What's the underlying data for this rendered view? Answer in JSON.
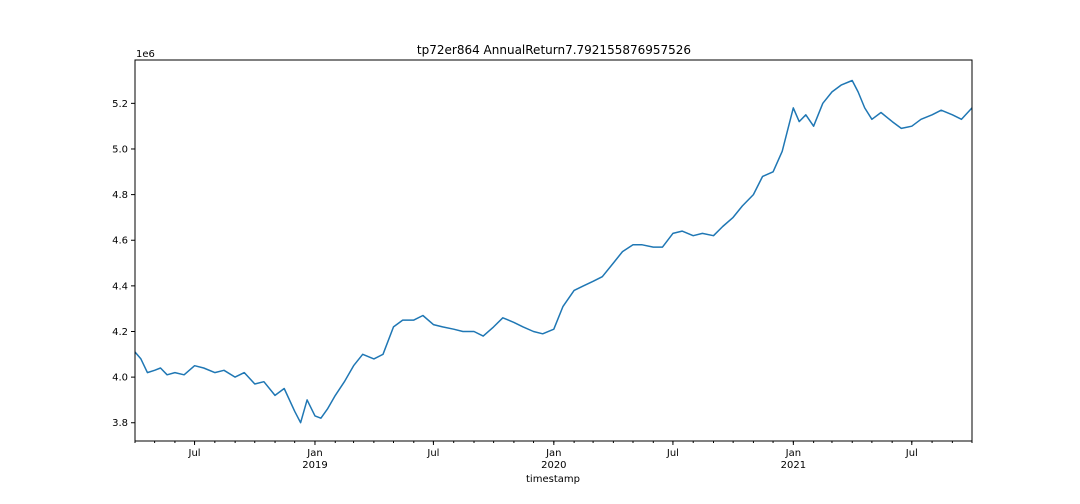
{
  "chart_data": {
    "type": "line",
    "title": "tp72er864 AnnualReturn7.792155876957526",
    "xlabel": "timestamp",
    "ylabel": "",
    "y_offset_label": "1e6",
    "y_scale": 1000000,
    "ylim": [
      3.72,
      5.39
    ],
    "xlim": [
      "2018-04-01",
      "2021-10-01"
    ],
    "yticks": [
      3.8,
      4.0,
      4.2,
      4.4,
      4.6,
      4.8,
      5.0,
      5.2
    ],
    "ytick_labels": [
      "3.8",
      "4.0",
      "4.2",
      "4.4",
      "4.6",
      "4.8",
      "5.0",
      "5.2"
    ],
    "xticks_major": [
      {
        "date": "2018-07-01",
        "label": "Jul",
        "sublabel": ""
      },
      {
        "date": "2019-01-01",
        "label": "Jan",
        "sublabel": "2019"
      },
      {
        "date": "2019-07-01",
        "label": "Jul",
        "sublabel": ""
      },
      {
        "date": "2020-01-01",
        "label": "Jan",
        "sublabel": "2020"
      },
      {
        "date": "2020-07-01",
        "label": "Jul",
        "sublabel": ""
      },
      {
        "date": "2021-01-01",
        "label": "Jan",
        "sublabel": "2021"
      },
      {
        "date": "2021-07-01",
        "label": "Jul",
        "sublabel": ""
      }
    ],
    "grid": false,
    "line_color": "#1f77b4",
    "series": [
      {
        "name": "",
        "x": [
          "2018-04-01",
          "2018-04-10",
          "2018-04-20",
          "2018-05-01",
          "2018-05-10",
          "2018-05-20",
          "2018-06-01",
          "2018-06-15",
          "2018-07-01",
          "2018-07-15",
          "2018-08-01",
          "2018-08-15",
          "2018-09-01",
          "2018-09-15",
          "2018-10-01",
          "2018-10-15",
          "2018-11-01",
          "2018-11-15",
          "2018-12-01",
          "2018-12-10",
          "2018-12-20",
          "2019-01-01",
          "2019-01-10",
          "2019-01-20",
          "2019-02-01",
          "2019-02-15",
          "2019-03-01",
          "2019-03-15",
          "2019-04-01",
          "2019-04-15",
          "2019-05-01",
          "2019-05-15",
          "2019-06-01",
          "2019-06-15",
          "2019-07-01",
          "2019-07-15",
          "2019-08-01",
          "2019-08-15",
          "2019-09-01",
          "2019-09-15",
          "2019-10-01",
          "2019-10-15",
          "2019-11-01",
          "2019-11-15",
          "2019-12-01",
          "2019-12-15",
          "2020-01-01",
          "2020-01-15",
          "2020-02-01",
          "2020-02-15",
          "2020-03-01",
          "2020-03-15",
          "2020-04-01",
          "2020-04-15",
          "2020-05-01",
          "2020-05-15",
          "2020-06-01",
          "2020-06-15",
          "2020-07-01",
          "2020-07-15",
          "2020-08-01",
          "2020-08-15",
          "2020-09-01",
          "2020-09-15",
          "2020-10-01",
          "2020-10-15",
          "2020-11-01",
          "2020-11-15",
          "2020-12-01",
          "2020-12-15",
          "2021-01-01",
          "2021-01-10",
          "2021-01-20",
          "2021-02-01",
          "2021-02-15",
          "2021-03-01",
          "2021-03-15",
          "2021-04-01",
          "2021-04-10",
          "2021-04-20",
          "2021-05-01",
          "2021-05-15",
          "2021-06-01",
          "2021-06-15",
          "2021-07-01",
          "2021-07-15",
          "2021-08-01",
          "2021-08-15",
          "2021-09-01",
          "2021-09-15",
          "2021-10-01"
        ],
        "values": [
          4.11,
          4.08,
          4.02,
          4.03,
          4.04,
          4.01,
          4.02,
          4.01,
          4.05,
          4.04,
          4.02,
          4.03,
          4.0,
          4.02,
          3.97,
          3.98,
          3.92,
          3.95,
          3.85,
          3.8,
          3.9,
          3.83,
          3.82,
          3.86,
          3.92,
          3.98,
          4.05,
          4.1,
          4.08,
          4.1,
          4.22,
          4.25,
          4.25,
          4.27,
          4.23,
          4.22,
          4.21,
          4.2,
          4.2,
          4.18,
          4.22,
          4.26,
          4.24,
          4.22,
          4.2,
          4.19,
          4.21,
          4.31,
          4.38,
          4.4,
          4.42,
          4.44,
          4.5,
          4.55,
          4.58,
          4.58,
          4.57,
          4.57,
          4.63,
          4.64,
          4.62,
          4.63,
          4.62,
          4.66,
          4.7,
          4.75,
          4.8,
          4.88,
          4.9,
          4.99,
          5.18,
          5.12,
          5.15,
          5.1,
          5.2,
          5.25,
          5.28,
          5.3,
          5.25,
          5.18,
          5.13,
          5.16,
          5.12,
          5.09,
          5.1,
          5.13,
          5.15,
          5.17,
          5.15,
          5.13,
          5.18
        ]
      }
    ]
  }
}
